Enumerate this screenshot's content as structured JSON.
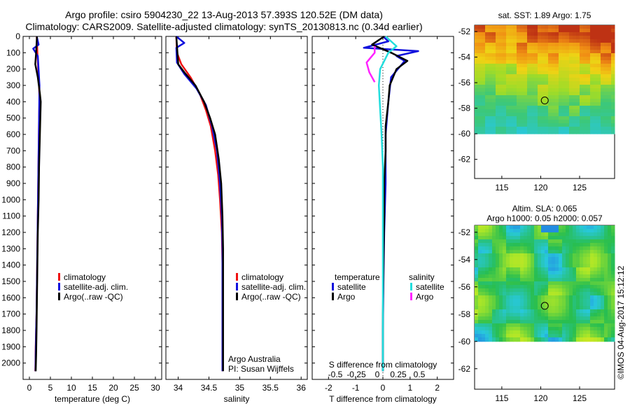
{
  "header": {
    "title_line1": "Argo profile: csiro 5904230_22 13-Aug-2013 57.393S 120.52E (DM data)",
    "title_line2": "Climatology: CARS2009. Satellite-adjusted climatology: synTS_20130813.nc (0.34d earlier)"
  },
  "credit": "©IMOS 04-Aug-2017 15:12:12",
  "colors": {
    "red": "#ee1111",
    "blue": "#1111dd",
    "black": "#000000",
    "cyan": "#22dddd",
    "magenta": "#ff22ff"
  },
  "chart_data": [
    {
      "type": "line",
      "panel": "temperature",
      "xlabel": "temperature (deg C)",
      "xlim": [
        -1.5,
        31.5
      ],
      "xticks": [
        0,
        5,
        10,
        15,
        20,
        25,
        30
      ],
      "ylim": [
        2100,
        0
      ],
      "yticks": [
        0,
        100,
        200,
        300,
        400,
        500,
        600,
        700,
        800,
        900,
        1000,
        1100,
        1200,
        1300,
        1400,
        1500,
        1600,
        1700,
        1800,
        1900,
        2000
      ],
      "legend": [
        "climatology",
        "satellite-adj. clim.",
        "Argo(..raw -QC)"
      ],
      "series": [
        {
          "name": "climatology",
          "color": "red",
          "x": [
            1.75,
            1.9,
            2.3,
            2.4,
            2.3,
            2.2,
            2.1,
            2.0,
            1.9,
            1.8,
            1.7,
            1.6,
            1.5,
            1.45,
            1.4
          ],
          "y": [
            0,
            100,
            300,
            400,
            500,
            700,
            900,
            1100,
            1300,
            1500,
            1700,
            1800,
            1900,
            2000,
            2050
          ]
        },
        {
          "name": "satellite-adj. clim.",
          "color": "blue",
          "x": [
            1.75,
            2.2,
            0.9,
            2.0,
            2.4,
            2.3,
            2.2,
            2.1,
            2.0,
            1.9,
            1.8,
            1.7,
            1.6,
            1.5,
            1.45
          ],
          "y": [
            0,
            50,
            75,
            120,
            300,
            500,
            700,
            900,
            1100,
            1300,
            1500,
            1700,
            1800,
            1950,
            2050
          ]
        },
        {
          "name": "Argo(..raw -QC)",
          "color": "black",
          "x": [
            1.8,
            1.6,
            1.4,
            2.0,
            2.5,
            2.7,
            2.5,
            2.3,
            2.2,
            2.0,
            1.9,
            1.8,
            1.7,
            1.6,
            1.5
          ],
          "y": [
            0,
            100,
            170,
            250,
            350,
            400,
            600,
            800,
            1000,
            1200,
            1400,
            1600,
            1800,
            1950,
            2050
          ]
        }
      ]
    },
    {
      "type": "line",
      "panel": "salinity",
      "xlabel": "salinity",
      "xlim": [
        33.8,
        36.1
      ],
      "xticks": [
        34,
        34.5,
        35,
        35.5,
        36
      ],
      "ylim": [
        2100,
        0
      ],
      "legend": [
        "climatology",
        "satellite-adj. clim.",
        "Argo(..raw -QC)"
      ],
      "annotations": [
        "Argo Australia",
        "PI: Susan Wijffels"
      ],
      "series": [
        {
          "name": "climatology",
          "color": "red",
          "x": [
            33.97,
            33.98,
            34.05,
            34.2,
            34.35,
            34.45,
            34.53,
            34.6,
            34.65,
            34.68,
            34.71,
            34.72,
            34.72,
            34.72,
            34.72
          ],
          "y": [
            0,
            100,
            170,
            250,
            350,
            450,
            550,
            700,
            850,
            1000,
            1200,
            1400,
            1600,
            1800,
            2050
          ]
        },
        {
          "name": "satellite-adj. clim.",
          "color": "blue",
          "x": [
            33.97,
            34.1,
            33.97,
            33.98,
            34.1,
            34.3,
            34.45,
            34.55,
            34.63,
            34.68,
            34.71,
            34.72,
            34.72,
            34.72,
            34.72
          ],
          "y": [
            0,
            40,
            70,
            160,
            230,
            320,
            420,
            550,
            700,
            900,
            1100,
            1300,
            1500,
            1800,
            2050
          ]
        },
        {
          "name": "Argo(..raw -QC)",
          "color": "black",
          "x": [
            33.97,
            34.0,
            34.1,
            34.28,
            34.42,
            34.52,
            34.6,
            34.66,
            34.7,
            34.72,
            34.73,
            34.73,
            34.73,
            34.73,
            34.73
          ],
          "y": [
            0,
            170,
            220,
            300,
            400,
            500,
            600,
            750,
            900,
            1100,
            1300,
            1500,
            1700,
            1900,
            2050
          ]
        }
      ]
    },
    {
      "type": "line",
      "panel": "differences",
      "xlabel": "T difference from climatology",
      "xlim": [
        -2.6,
        2.6
      ],
      "xticks": [
        -2,
        -1,
        0,
        1,
        2
      ],
      "top_xlabel": "S difference from climatology",
      "top_xticks": [
        "-0.5",
        "-0.25",
        "0",
        "0.25",
        "0.5"
      ],
      "ylim": [
        2100,
        0
      ],
      "legend_left_title": "temperature",
      "legend_right_title": "salinity",
      "legend_left": [
        "satellite",
        "Argo"
      ],
      "legend_right": [
        "satellite",
        "Argo"
      ],
      "series": [
        {
          "name": "satellite",
          "group": "temperature",
          "color": "blue",
          "x": [
            0,
            0.2,
            -0.7,
            1.3,
            0.5,
            0.8,
            0.3,
            0.2,
            0.1,
            0.1,
            0.05,
            0.02,
            0.0,
            0.0
          ],
          "y": [
            0,
            30,
            70,
            90,
            120,
            150,
            250,
            400,
            600,
            900,
            1200,
            1500,
            1800,
            2050
          ]
        },
        {
          "name": "Argo",
          "group": "temperature",
          "color": "black",
          "x": [
            0.05,
            -0.4,
            0.3,
            0.9,
            0.5,
            0.25,
            0.2,
            0.1,
            0.1,
            0.05,
            0.05,
            0.02,
            0.0,
            0.0
          ],
          "y": [
            0,
            50,
            100,
            150,
            200,
            300,
            400,
            550,
            700,
            900,
            1100,
            1400,
            1700,
            2050
          ]
        },
        {
          "name": "satellite",
          "group": "salinity",
          "color": "cyan",
          "x": [
            0.1,
            0.5,
            0.2,
            -0.1,
            -0.15,
            -0.1,
            -0.05,
            0.0,
            0.0,
            0.0,
            0.0,
            0.0
          ],
          "y": [
            0,
            60,
            100,
            200,
            300,
            450,
            600,
            800,
            1000,
            1300,
            1700,
            2050
          ]
        },
        {
          "name": "Argo",
          "group": "salinity",
          "color": "magenta",
          "x": [
            -0.3,
            -0.3,
            -0.6,
            -0.5,
            -0.3
          ],
          "y": [
            60,
            100,
            160,
            220,
            280
          ]
        }
      ]
    },
    {
      "type": "heatmap",
      "panel": "sst-map",
      "title": "sat. SST: 1.89 Argo: 1.75",
      "xlim": [
        111.5,
        129.5
      ],
      "ylim": [
        -63.5,
        -51.5
      ],
      "xticks": [
        115,
        120,
        125
      ],
      "yticks": [
        -52,
        -54,
        -56,
        -58,
        -60,
        -62
      ],
      "valid_lat_min": -60,
      "marker": [
        120.52,
        -57.393
      ]
    },
    {
      "type": "heatmap",
      "panel": "sla-map",
      "title": "Altim. SLA: 0.065",
      "subtitle": "Argo h1000: 0.05 h2000: 0.057",
      "xlim": [
        111.5,
        129.5
      ],
      "ylim": [
        -63.5,
        -51.5
      ],
      "xticks": [
        115,
        120,
        125
      ],
      "yticks": [
        -52,
        -54,
        -56,
        -58,
        -60,
        -62
      ],
      "valid_lat_min": -60,
      "marker": [
        120.52,
        -57.393
      ]
    }
  ]
}
